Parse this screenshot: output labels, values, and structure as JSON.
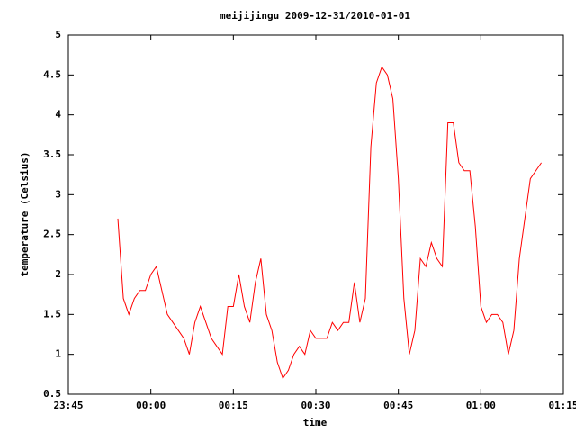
{
  "chart_data": {
    "type": "line",
    "title": "meijijingu 2009-12-31/2010-01-01",
    "x_label": "time",
    "y_label": "temperature (Celsius)",
    "color": "#ff0000",
    "x": [
      -6,
      -5,
      -4,
      -3,
      -2,
      -1,
      0,
      1,
      2,
      3,
      4,
      5,
      6,
      7,
      8,
      9,
      10,
      11,
      12,
      13,
      14,
      15,
      16,
      17,
      18,
      19,
      20,
      21,
      22,
      23,
      24,
      25,
      26,
      27,
      28,
      29,
      30,
      31,
      32,
      33,
      34,
      35,
      36,
      37,
      38,
      39,
      40,
      41,
      42,
      43,
      44,
      45,
      46,
      47,
      48,
      49,
      50,
      51,
      52,
      53,
      54,
      55,
      56,
      57,
      58,
      59,
      60,
      61,
      62,
      63,
      64,
      65,
      66,
      67,
      68,
      69,
      70,
      71
    ],
    "values": [
      2.7,
      1.7,
      1.5,
      1.7,
      1.8,
      1.8,
      2.0,
      2.1,
      1.8,
      1.5,
      1.4,
      1.3,
      1.2,
      1.0,
      1.4,
      1.6,
      1.4,
      1.2,
      1.1,
      1.0,
      1.6,
      1.6,
      2.0,
      1.6,
      1.4,
      1.9,
      2.2,
      1.5,
      1.3,
      0.9,
      0.7,
      0.8,
      1.0,
      1.1,
      1.0,
      1.3,
      1.2,
      1.2,
      1.2,
      1.4,
      1.3,
      1.4,
      1.4,
      1.9,
      1.4,
      1.7,
      3.6,
      4.4,
      4.6,
      4.5,
      4.2,
      3.2,
      1.7,
      1.0,
      1.3,
      2.2,
      2.1,
      2.4,
      2.2,
      2.1,
      3.9,
      3.9,
      3.4,
      3.3,
      3.3,
      2.6,
      1.6,
      1.4,
      1.5,
      1.5,
      1.4,
      1.0,
      1.3,
      2.2,
      2.7,
      3.2,
      3.3,
      3.4
    ],
    "xlim": [
      -15,
      75
    ],
    "xticks": [
      {
        "value": -15,
        "label": "23:45"
      },
      {
        "value": 0,
        "label": "00:00"
      },
      {
        "value": 15,
        "label": "00:15"
      },
      {
        "value": 30,
        "label": "00:30"
      },
      {
        "value": 45,
        "label": "00:45"
      },
      {
        "value": 60,
        "label": "01:00"
      },
      {
        "value": 75,
        "label": "01:15"
      }
    ],
    "ylim": [
      0.5,
      5
    ],
    "yticks": [
      0.5,
      1,
      1.5,
      2,
      2.5,
      3,
      3.5,
      4,
      4.5,
      5
    ]
  }
}
